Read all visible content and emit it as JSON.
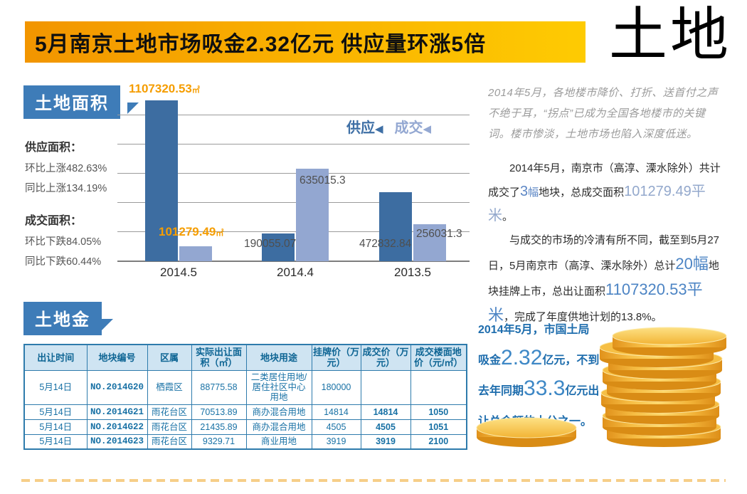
{
  "banner": {
    "title": "5月南京土地市场吸金2.32亿元  供应量环涨5倍",
    "brand": "土地"
  },
  "area_section": {
    "badge": "土地面积",
    "stats": [
      {
        "heading": "供应面积：",
        "lines": [
          "环比上涨482.63%",
          "同比上涨134.19%"
        ]
      },
      {
        "heading": "成交面积：",
        "lines": [
          "环比下跌84.05%",
          "同比下跌60.44%"
        ]
      }
    ]
  },
  "chart_data": {
    "type": "bar",
    "categories": [
      "2014.5",
      "2014.4",
      "2013.5"
    ],
    "series": [
      {
        "name": "供应",
        "color": "#3d6da1",
        "values": [
          1107320.53,
          190055.07,
          472832.84
        ]
      },
      {
        "name": "成交",
        "color": "#93a7d1",
        "values": [
          101279.49,
          635015.3,
          256031.3
        ]
      }
    ],
    "ylim": [
      0,
      1107320.53
    ],
    "grid": true,
    "legend_position": "top-right",
    "legend": [
      {
        "label": "供应",
        "arrow": "◀"
      },
      {
        "label": "成交",
        "arrow": "◀"
      }
    ],
    "highlight_labels": [
      {
        "value": "1107320.53",
        "unit": "㎡"
      },
      {
        "value": "101279.49",
        "unit": "㎡"
      }
    ],
    "inline_labels": [
      "190055.07",
      "635015.3",
      "472832.84",
      "256031.3"
    ]
  },
  "right_panel": {
    "intro": "2014年5月，各地楼市降价、打折、送首付之声不绝于耳，“拐点”已成为全国各地楼市的关键词。楼市惨淡，土地市场也陷入深度低迷。",
    "para2": [
      {
        "t": "2014年5月，南京市（高淳、溧水除外）共计成交了"
      },
      {
        "t": "3",
        "c": "num-md-blue"
      },
      {
        "t": "幅",
        "c": "txt-blue"
      },
      {
        "t": "地块，总成交面积"
      },
      {
        "t": "101279.49平米",
        "c": "num-lg-steel"
      },
      {
        "t": "。"
      }
    ],
    "para3": [
      {
        "t": "与成交的市场的冷清有所不同，截至到5月27日，5月南京市（高淳、溧水除外）总计"
      },
      {
        "t": "20幅",
        "c": "num-lg-blue"
      },
      {
        "t": "地块挂牌上市，总出让面积"
      },
      {
        "t": "1107320.53平米",
        "c": "num-lg-blue"
      },
      {
        "t": "，完成了年度供地计划的13.8%。"
      }
    ]
  },
  "gold_section": {
    "badge": "土地金",
    "table": {
      "headers": [
        "出让时间",
        "地块编号",
        "区属",
        "实际出让面积（㎡）",
        "地块用途",
        "挂牌价（万元）",
        "成交价（万元）",
        "成交楼面地价（元/㎡）"
      ],
      "rows": [
        [
          "5月14日",
          "NO.2014G20",
          "栖霞区",
          "88775.58",
          "二类居住用地/居住社区中心用地",
          "180000",
          "",
          ""
        ],
        [
          "5月14日",
          "NO.2014G21",
          "雨花台区",
          "70513.89",
          "商办混合用地",
          "14814",
          "14814",
          "1050"
        ],
        [
          "5月14日",
          "NO.2014G22",
          "雨花台区",
          "21435.89",
          "商办混合用地",
          "4505",
          "4505",
          "1051"
        ],
        [
          "5月14日",
          "NO.2014G23",
          "雨花台区",
          "9329.71",
          "商业用地",
          "3919",
          "3919",
          "2100"
        ]
      ]
    },
    "summary_lines": [
      [
        {
          "t": "2014年5月，市国土局"
        }
      ],
      [
        {
          "t": "吸金"
        },
        {
          "t": "2.32",
          "c": "sum-num"
        },
        {
          "t": "亿元，不到"
        }
      ],
      [
        {
          "t": "去年同期"
        },
        {
          "t": "33.3",
          "c": "sum-num"
        },
        {
          "t": "亿元出"
        }
      ],
      [
        {
          "t": "让总金额的十分之一。"
        }
      ]
    ]
  },
  "colors": {
    "banner_gradient_start": "#f29500",
    "banner_gradient_end": "#fecb02",
    "badge_blue": "#3e7cb8",
    "bar_supply": "#3d6da1",
    "bar_deal": "#93a7d1",
    "accent_orange": "#f59d00",
    "table_border": "#2e7bac",
    "table_header_bg": "#cfe4f2",
    "coin_gold": "#f3b63a",
    "dash_line": "#f6ce88"
  }
}
